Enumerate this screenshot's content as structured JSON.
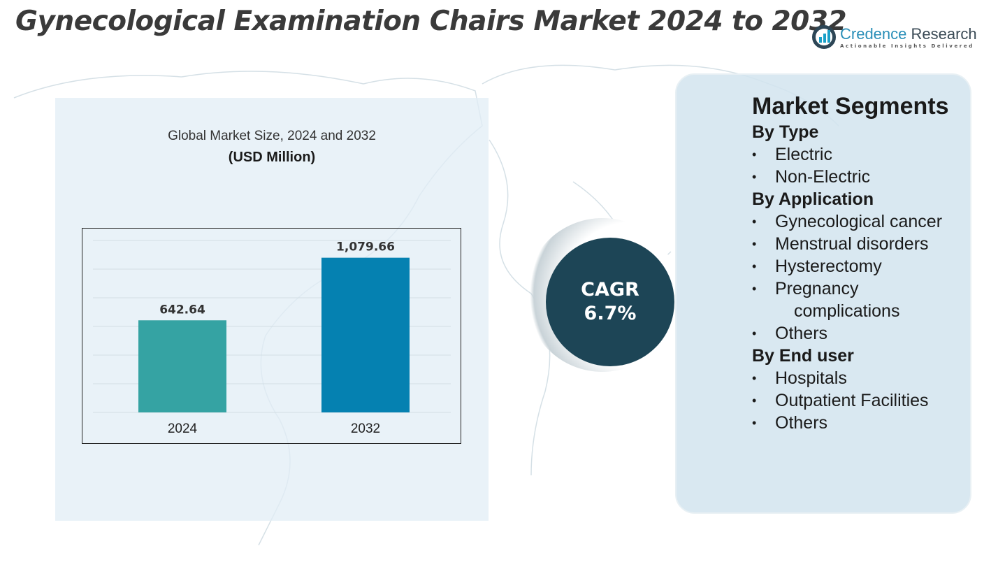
{
  "title": "Gynecological Examination Chairs Market 2024 to 2032",
  "logo": {
    "name_part1": "Credence",
    "name_part2": "Research",
    "tagline": "Actionable Insights Delivered"
  },
  "chart_data": {
    "type": "bar",
    "title": "Global Market Size, 2024 and 2032",
    "subtitle": "(USD Million)",
    "categories": [
      "2024",
      "2032"
    ],
    "values": [
      642.64,
      1079.66
    ],
    "value_labels": [
      "642.64",
      "1,079.66"
    ],
    "colors": [
      "#35a3a3",
      "#0581b1"
    ],
    "ylim": [
      0,
      1200
    ],
    "grid": true
  },
  "cagr": {
    "label": "CAGR",
    "value": "6.7%"
  },
  "segments": {
    "title": "Market Segments",
    "groups": [
      {
        "heading": "By Type",
        "items": [
          "Electric",
          "Non-Electric"
        ]
      },
      {
        "heading": "By Application",
        "items": [
          "Gynecological cancer",
          "Menstrual disorders",
          "Hysterectomy",
          "Pregnancy complications",
          "Others"
        ]
      },
      {
        "heading": "By End user",
        "items": [
          "Hospitals",
          "Outpatient Facilities",
          "Others"
        ]
      }
    ]
  }
}
